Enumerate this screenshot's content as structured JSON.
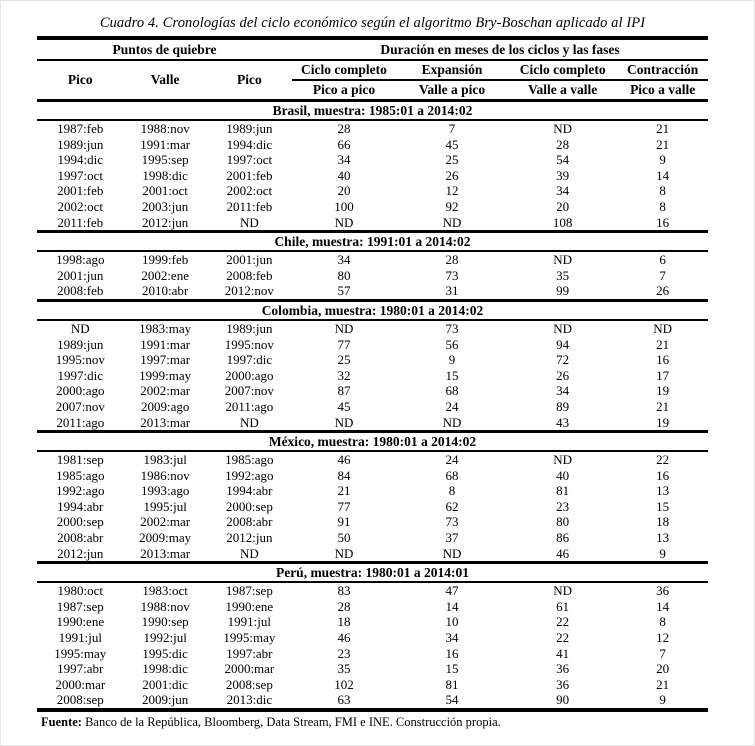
{
  "title": "Cuadro 4. Cronologías del ciclo económico según el algoritmo Bry-Boschan aplicado al IPI",
  "table": {
    "group_headers": {
      "left": "Puntos de quiebre",
      "right": "Duración en meses de los ciclos y las fases"
    },
    "columns": {
      "breakpoints": [
        "Pico",
        "Valle",
        "Pico"
      ],
      "durations": [
        {
          "top": "Ciclo completo",
          "bottom": "Pico a pico"
        },
        {
          "top": "Expansión",
          "bottom": "Valle a pico"
        },
        {
          "top": "Ciclo completo",
          "bottom": "Valle a valle"
        },
        {
          "top": "Contracción",
          "bottom": "Pico a valle"
        }
      ]
    },
    "sections": [
      {
        "header": "Brasil, muestra: 1985:01 a 2014:02",
        "rows": [
          [
            "1987:feb",
            "1988:nov",
            "1989:jun",
            "28",
            "7",
            "ND",
            "21"
          ],
          [
            "1989:jun",
            "1991:mar",
            "1994:dic",
            "66",
            "45",
            "28",
            "21"
          ],
          [
            "1994:dic",
            "1995:sep",
            "1997:oct",
            "34",
            "25",
            "54",
            "9"
          ],
          [
            "1997:oct",
            "1998:dic",
            "2001:feb",
            "40",
            "26",
            "39",
            "14"
          ],
          [
            "2001:feb",
            "2001:oct",
            "2002:oct",
            "20",
            "12",
            "34",
            "8"
          ],
          [
            "2002:oct",
            "2003:jun",
            "2011:feb",
            "100",
            "92",
            "20",
            "8"
          ],
          [
            "2011:feb",
            "2012:jun",
            "ND",
            "ND",
            "ND",
            "108",
            "16"
          ]
        ]
      },
      {
        "header": "Chile, muestra: 1991:01 a 2014:02",
        "rows": [
          [
            "1998:ago",
            "1999:feb",
            "2001:jun",
            "34",
            "28",
            "ND",
            "6"
          ],
          [
            "2001:jun",
            "2002:ene",
            "2008:feb",
            "80",
            "73",
            "35",
            "7"
          ],
          [
            "2008:feb",
            "2010:abr",
            "2012:nov",
            "57",
            "31",
            "99",
            "26"
          ]
        ]
      },
      {
        "header": "Colombia, muestra: 1980:01 a 2014:02",
        "rows": [
          [
            "ND",
            "1983:may",
            "1989:jun",
            "ND",
            "73",
            "ND",
            "ND"
          ],
          [
            "1989:jun",
            "1991:mar",
            "1995:nov",
            "77",
            "56",
            "94",
            "21"
          ],
          [
            "1995:nov",
            "1997:mar",
            "1997:dic",
            "25",
            "9",
            "72",
            "16"
          ],
          [
            "1997:dic",
            "1999:may",
            "2000:ago",
            "32",
            "15",
            "26",
            "17"
          ],
          [
            "2000:ago",
            "2002:mar",
            "2007:nov",
            "87",
            "68",
            "34",
            "19"
          ],
          [
            "2007:nov",
            "2009:ago",
            "2011:ago",
            "45",
            "24",
            "89",
            "21"
          ],
          [
            "2011:ago",
            "2013:mar",
            "ND",
            "ND",
            "ND",
            "43",
            "19"
          ]
        ]
      },
      {
        "header": "México, muestra: 1980:01 a 2014:02",
        "rows": [
          [
            "1981:sep",
            "1983:jul",
            "1985:ago",
            "46",
            "24",
            "ND",
            "22"
          ],
          [
            "1985:ago",
            "1986:nov",
            "1992:ago",
            "84",
            "68",
            "40",
            "16"
          ],
          [
            "1992:ago",
            "1993:ago",
            "1994:abr",
            "21",
            "8",
            "81",
            "13"
          ],
          [
            "1994:abr",
            "1995:jul",
            "2000:sep",
            "77",
            "62",
            "23",
            "15"
          ],
          [
            "2000:sep",
            "2002:mar",
            "2008:abr",
            "91",
            "73",
            "80",
            "18"
          ],
          [
            "2008:abr",
            "2009:may",
            "2012:jun",
            "50",
            "37",
            "86",
            "13"
          ],
          [
            "2012:jun",
            "2013:mar",
            "ND",
            "ND",
            "ND",
            "46",
            "9"
          ]
        ]
      },
      {
        "header": "Perú, muestra: 1980:01 a 2014:01",
        "rows": [
          [
            "1980:oct",
            "1983:oct",
            "1987:sep",
            "83",
            "47",
            "ND",
            "36"
          ],
          [
            "1987:sep",
            "1988:nov",
            "1990:ene",
            "28",
            "14",
            "61",
            "14"
          ],
          [
            "1990:ene",
            "1990:sep",
            "1991:jul",
            "18",
            "10",
            "22",
            "8"
          ],
          [
            "1991:jul",
            "1992:jul",
            "1995:may",
            "46",
            "34",
            "22",
            "12"
          ],
          [
            "1995:may",
            "1995:dic",
            "1997:abr",
            "23",
            "16",
            "41",
            "7"
          ],
          [
            "1997:abr",
            "1998:dic",
            "2000:mar",
            "35",
            "15",
            "36",
            "20"
          ],
          [
            "2000:mar",
            "2001:dic",
            "2008:sep",
            "102",
            "81",
            "36",
            "21"
          ],
          [
            "2008:sep",
            "2009:jun",
            "2013:dic",
            "63",
            "54",
            "90",
            "9"
          ]
        ]
      }
    ]
  },
  "footer": {
    "label": "Fuente:",
    "text": " Banco de la República, Bloomberg, Data Stream, FMI e INE. Construcción propia."
  }
}
